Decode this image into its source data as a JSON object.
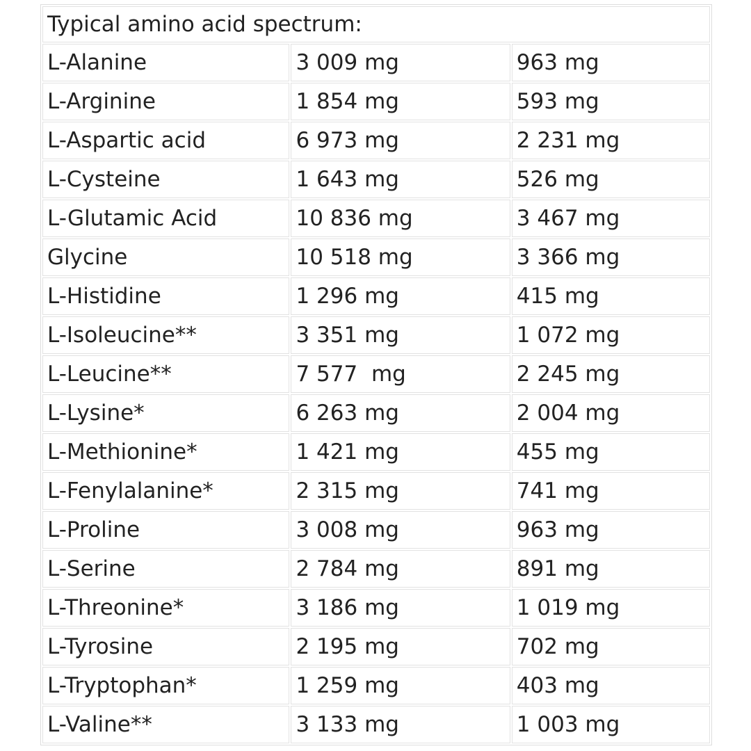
{
  "table": {
    "title": "Typical amino acid spectrum:",
    "rows": [
      [
        "L-Alanine",
        "3 009 mg",
        "963 mg"
      ],
      [
        "L-Arginine",
        "1 854 mg",
        "593 mg"
      ],
      [
        "L-Aspartic acid",
        "6 973 mg",
        "2 231 mg"
      ],
      [
        "L-Cysteine",
        "1 643 mg",
        "526 mg"
      ],
      [
        "L-Glutamic Acid",
        "10 836 mg",
        "3 467 mg"
      ],
      [
        "Glycine",
        "10 518 mg",
        "3 366 mg"
      ],
      [
        "L-Histidine",
        "1 296 mg",
        "415 mg"
      ],
      [
        "L-Isoleucine**",
        "3 351 mg",
        "1 072 mg"
      ],
      [
        "L-Leucine**",
        "7 577  mg",
        "2 245 mg"
      ],
      [
        "L-Lysine*",
        "6 263 mg",
        "2 004 mg"
      ],
      [
        "L-Methionine*",
        "1 421 mg",
        "455 mg"
      ],
      [
        "L-Fenylalanine*",
        "2 315 mg",
        "741 mg"
      ],
      [
        "L-Proline",
        "3 008 mg",
        "963 mg"
      ],
      [
        "L-Serine",
        "2 784 mg",
        "891 mg"
      ],
      [
        "L-Threonine*",
        "3 186 mg",
        "1 019 mg"
      ],
      [
        "L-Tyrosine",
        "2 195 mg",
        "702 mg"
      ],
      [
        "L-Tryptophan*",
        "1 259 mg",
        "403 mg"
      ],
      [
        "L-Valine**",
        "3 133 mg",
        "1 003 mg"
      ]
    ]
  }
}
